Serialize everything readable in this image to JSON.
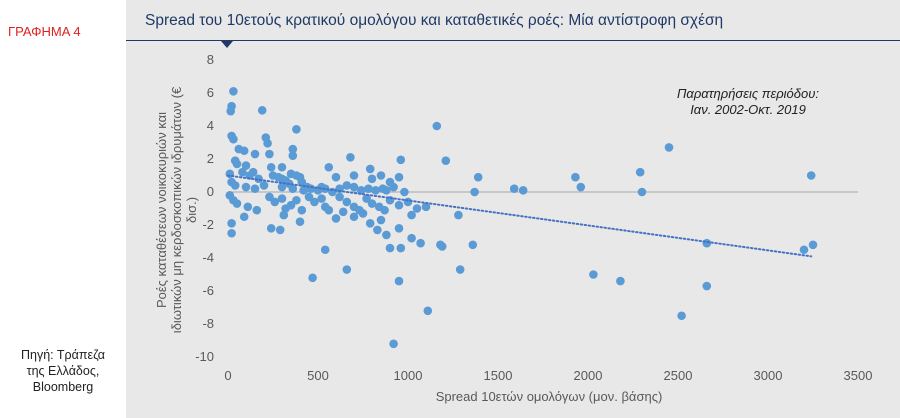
{
  "figure_label": "ΓΡΑΦΗΜΑ 4",
  "source_lines": [
    "Πηγή: Τράπεζα",
    "της Ελλάδος,",
    "Bloomberg"
  ],
  "colors": {
    "points": "#5b9bd5",
    "trend": "#4472c4",
    "title": "#1f3a66",
    "label": "#e02020",
    "panel": "#e8e8e8"
  },
  "chart_data": {
    "type": "scatter",
    "title": "Spread του 10ετούς κρατικού ομολόγου και  καταθετικές ροές: Μία αντίστροφη σχέση",
    "xlabel": "Spread 10ετών ομολόγων (μον. βάσης)",
    "ylabel_lines": [
      "Ροές καταθέσεων νοικοκυριών και",
      "ιδιωτικών μη κερδοσκοπικών ιδρυμάτων (€",
      "δισ.)"
    ],
    "xlim": [
      0,
      3500
    ],
    "ylim": [
      -10,
      8
    ],
    "x_ticks": [
      0,
      500,
      1000,
      1500,
      2000,
      2500,
      3000,
      3500
    ],
    "y_ticks": [
      8,
      6,
      4,
      2,
      0,
      -2,
      -4,
      -6,
      -8,
      -10
    ],
    "annotation": [
      "Παρατηρήσεις περιόδου:",
      "Ιαν. 2002-Οκτ. 2019"
    ],
    "trendline": {
      "style": "dotted",
      "from": [
        0,
        1.0
      ],
      "to": [
        3240,
        -3.9
      ]
    },
    "points": [
      [
        30,
        6.1
      ],
      [
        20,
        5.2
      ],
      [
        15,
        4.9
      ],
      [
        190,
        4.95
      ],
      [
        380,
        3.8
      ],
      [
        1160,
        4.0
      ],
      [
        20,
        3.4
      ],
      [
        30,
        3.2
      ],
      [
        210,
        3.3
      ],
      [
        220,
        2.95
      ],
      [
        360,
        2.6
      ],
      [
        2450,
        2.7
      ],
      [
        60,
        2.6
      ],
      [
        90,
        2.5
      ],
      [
        150,
        2.3
      ],
      [
        230,
        2.3
      ],
      [
        360,
        2.2
      ],
      [
        680,
        2.1
      ],
      [
        960,
        1.95
      ],
      [
        1210,
        1.9
      ],
      [
        40,
        1.9
      ],
      [
        50,
        1.7
      ],
      [
        100,
        1.6
      ],
      [
        240,
        1.5
      ],
      [
        300,
        1.5
      ],
      [
        560,
        1.5
      ],
      [
        790,
        1.4
      ],
      [
        10,
        1.1
      ],
      [
        80,
        1.2
      ],
      [
        120,
        1.0
      ],
      [
        140,
        1.2
      ],
      [
        170,
        0.8
      ],
      [
        250,
        1.0
      ],
      [
        280,
        0.9
      ],
      [
        300,
        0.8
      ],
      [
        320,
        0.7
      ],
      [
        350,
        1.1
      ],
      [
        380,
        1.0
      ],
      [
        400,
        0.9
      ],
      [
        410,
        0.6
      ],
      [
        600,
        0.9
      ],
      [
        700,
        1.0
      ],
      [
        800,
        0.8
      ],
      [
        850,
        1.0
      ],
      [
        900,
        0.6
      ],
      [
        950,
        0.9
      ],
      [
        1390,
        0.9
      ],
      [
        1930,
        0.9
      ],
      [
        2290,
        1.2
      ],
      [
        3240,
        1.0
      ],
      [
        20,
        0.6
      ],
      [
        40,
        0.4
      ],
      [
        100,
        0.3
      ],
      [
        150,
        0.2
      ],
      [
        200,
        0.4
      ],
      [
        300,
        0.3
      ],
      [
        340,
        0.5
      ],
      [
        360,
        0.2
      ],
      [
        420,
        0.1
      ],
      [
        440,
        0.3
      ],
      [
        460,
        0.2
      ],
      [
        500,
        0.1
      ],
      [
        520,
        0.3
      ],
      [
        540,
        0.2
      ],
      [
        580,
        0.0
      ],
      [
        620,
        0.2
      ],
      [
        660,
        0.4
      ],
      [
        700,
        0.3
      ],
      [
        740,
        0.1
      ],
      [
        780,
        0.2
      ],
      [
        820,
        0.1
      ],
      [
        860,
        0.2
      ],
      [
        880,
        0.1
      ],
      [
        920,
        0.3
      ],
      [
        980,
        0.0
      ],
      [
        1370,
        0.0
      ],
      [
        1590,
        0.2
      ],
      [
        1640,
        0.1
      ],
      [
        1960,
        0.3
      ],
      [
        2300,
        0.0
      ],
      [
        10,
        -0.2
      ],
      [
        30,
        -0.5
      ],
      [
        50,
        -0.7
      ],
      [
        110,
        -0.9
      ],
      [
        160,
        -1.1
      ],
      [
        230,
        -0.3
      ],
      [
        260,
        -0.6
      ],
      [
        300,
        -0.4
      ],
      [
        320,
        -1.0
      ],
      [
        350,
        -0.8
      ],
      [
        380,
        -0.5
      ],
      [
        410,
        -1.1
      ],
      [
        450,
        -0.3
      ],
      [
        480,
        -0.6
      ],
      [
        520,
        -0.4
      ],
      [
        540,
        -0.9
      ],
      [
        560,
        -1.1
      ],
      [
        620,
        -0.3
      ],
      [
        660,
        -0.6
      ],
      [
        700,
        -0.9
      ],
      [
        730,
        -1.1
      ],
      [
        770,
        -0.4
      ],
      [
        800,
        -0.7
      ],
      [
        840,
        -0.9
      ],
      [
        870,
        -1.1
      ],
      [
        900,
        -0.5
      ],
      [
        950,
        -0.8
      ],
      [
        1000,
        -0.6
      ],
      [
        1050,
        -1.0
      ],
      [
        1100,
        -0.9
      ],
      [
        20,
        -1.9
      ],
      [
        20,
        -2.5
      ],
      [
        90,
        -1.5
      ],
      [
        290,
        -2.3
      ],
      [
        310,
        -1.4
      ],
      [
        400,
        -1.8
      ],
      [
        600,
        -1.6
      ],
      [
        640,
        -1.2
      ],
      [
        700,
        -1.5
      ],
      [
        750,
        -1.3
      ],
      [
        790,
        -1.9
      ],
      [
        830,
        -2.3
      ],
      [
        850,
        -1.7
      ],
      [
        880,
        -2.6
      ],
      [
        950,
        -2.2
      ],
      [
        1020,
        -1.4
      ],
      [
        1280,
        -1.4
      ],
      [
        240,
        -2.2
      ],
      [
        540,
        -3.5
      ],
      [
        960,
        -3.4
      ],
      [
        1020,
        -2.8
      ],
      [
        1070,
        -3.1
      ],
      [
        1190,
        -3.3
      ],
      [
        1360,
        -3.2
      ],
      [
        1290,
        -4.7
      ],
      [
        1180,
        -3.2
      ],
      [
        2660,
        -3.1
      ],
      [
        3200,
        -3.5
      ],
      [
        3250,
        -3.2
      ],
      [
        900,
        -3.4
      ],
      [
        470,
        -5.2
      ],
      [
        660,
        -4.7
      ],
      [
        950,
        -5.4
      ],
      [
        2030,
        -5.0
      ],
      [
        2180,
        -5.4
      ],
      [
        2660,
        -5.7
      ],
      [
        1110,
        -7.2
      ],
      [
        2520,
        -7.5
      ],
      [
        920,
        -9.2
      ]
    ]
  }
}
